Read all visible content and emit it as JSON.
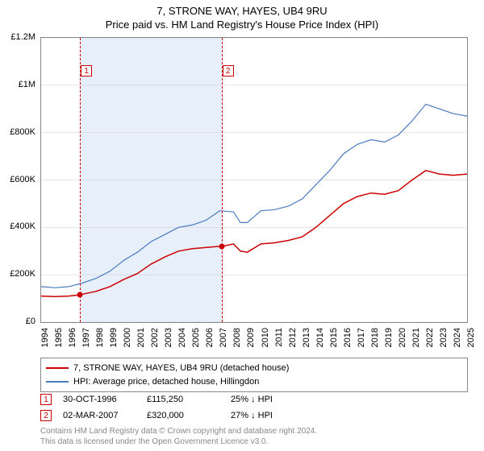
{
  "title_line1": "7, STRONE WAY, HAYES, UB4 9RU",
  "title_line2": "Price paid vs. HM Land Registry's House Price Index (HPI)",
  "chart": {
    "type": "line",
    "plot_bg": "#ffffff",
    "border_color": "#888888",
    "x": {
      "min": 1994,
      "max": 2025,
      "step": 1
    },
    "y": {
      "min": 0,
      "max": 1200000,
      "step": 200000,
      "ticks": [
        "£0",
        "£200K",
        "£400K",
        "£600K",
        "£800K",
        "£1M",
        "£1.2M"
      ],
      "label_fontsize": 11
    },
    "shaded_band": {
      "from": 1996.8,
      "to": 2007.2,
      "color": "rgba(200,220,245,0.45)"
    },
    "vlines": [
      {
        "x": 1996.83,
        "color": "#cc0000"
      },
      {
        "x": 2007.17,
        "color": "#cc0000"
      }
    ],
    "markers": [
      {
        "n": "1",
        "x": 1996.83,
        "y": 115250,
        "label_x": 1997.3,
        "label_y": 1060000,
        "color": "#cc0000"
      },
      {
        "n": "2",
        "x": 2007.17,
        "y": 320000,
        "label_x": 2007.6,
        "label_y": 1060000,
        "color": "#cc0000"
      }
    ],
    "series": [
      {
        "name": "7, STRONE WAY, HAYES, UB4 9RU (detached house)",
        "color": "#cc0000",
        "width": 1.5,
        "points": [
          [
            1994,
            110000
          ],
          [
            1995,
            108000
          ],
          [
            1996,
            110000
          ],
          [
            1996.83,
            115250
          ],
          [
            1997,
            118000
          ],
          [
            1998,
            130000
          ],
          [
            1999,
            150000
          ],
          [
            2000,
            180000
          ],
          [
            2001,
            205000
          ],
          [
            2002,
            245000
          ],
          [
            2003,
            275000
          ],
          [
            2004,
            300000
          ],
          [
            2005,
            310000
          ],
          [
            2006,
            315000
          ],
          [
            2007,
            320000
          ],
          [
            2007.17,
            320000
          ],
          [
            2008,
            330000
          ],
          [
            2008.5,
            300000
          ],
          [
            2009,
            295000
          ],
          [
            2010,
            330000
          ],
          [
            2011,
            335000
          ],
          [
            2012,
            345000
          ],
          [
            2013,
            360000
          ],
          [
            2014,
            400000
          ],
          [
            2015,
            450000
          ],
          [
            2016,
            500000
          ],
          [
            2017,
            530000
          ],
          [
            2018,
            545000
          ],
          [
            2019,
            540000
          ],
          [
            2020,
            555000
          ],
          [
            2021,
            600000
          ],
          [
            2022,
            640000
          ],
          [
            2023,
            625000
          ],
          [
            2024,
            620000
          ],
          [
            2025,
            625000
          ]
        ]
      },
      {
        "name": "HPI: Average price, detached house, Hillingdon",
        "color": "#4a7bbf",
        "width": 1.2,
        "points": [
          [
            1994,
            150000
          ],
          [
            1995,
            145000
          ],
          [
            1996,
            150000
          ],
          [
            1997,
            165000
          ],
          [
            1998,
            185000
          ],
          [
            1999,
            215000
          ],
          [
            2000,
            260000
          ],
          [
            2001,
            295000
          ],
          [
            2002,
            340000
          ],
          [
            2003,
            370000
          ],
          [
            2004,
            400000
          ],
          [
            2005,
            410000
          ],
          [
            2006,
            430000
          ],
          [
            2007,
            470000
          ],
          [
            2008,
            465000
          ],
          [
            2008.5,
            420000
          ],
          [
            2009,
            420000
          ],
          [
            2010,
            470000
          ],
          [
            2011,
            475000
          ],
          [
            2012,
            490000
          ],
          [
            2013,
            520000
          ],
          [
            2014,
            580000
          ],
          [
            2015,
            640000
          ],
          [
            2016,
            710000
          ],
          [
            2017,
            750000
          ],
          [
            2018,
            770000
          ],
          [
            2019,
            760000
          ],
          [
            2020,
            790000
          ],
          [
            2021,
            850000
          ],
          [
            2022,
            920000
          ],
          [
            2023,
            900000
          ],
          [
            2024,
            880000
          ],
          [
            2025,
            870000
          ]
        ]
      }
    ]
  },
  "legend": [
    {
      "color": "#cc0000",
      "label": "7, STRONE WAY, HAYES, UB4 9RU (detached house)"
    },
    {
      "color": "#4a7bbf",
      "label": "HPI: Average price, detached house, Hillingdon"
    }
  ],
  "marker_rows": [
    {
      "n": "1",
      "color": "#cc0000",
      "date": "30-OCT-1996",
      "price": "£115,250",
      "delta": "25% ↓ HPI"
    },
    {
      "n": "2",
      "color": "#cc0000",
      "date": "02-MAR-2007",
      "price": "£320,000",
      "delta": "27% ↓ HPI"
    }
  ],
  "footer": {
    "line1": "Contains HM Land Registry data © Crown copyright and database right 2024.",
    "line2": "This data is licensed under the Open Government Licence v3.0."
  }
}
